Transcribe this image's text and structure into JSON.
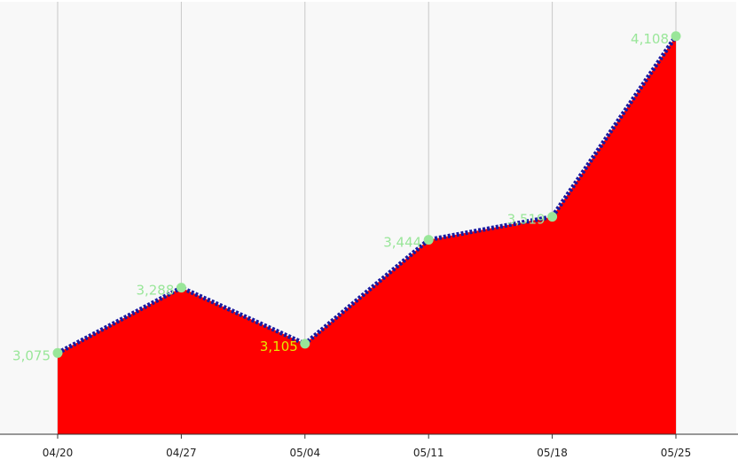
{
  "chart_data": {
    "type": "area",
    "title": "",
    "xlabel": "",
    "ylabel": "",
    "categories": [
      "04/20",
      "04/27",
      "05/04",
      "05/11",
      "05/18",
      "05/25"
    ],
    "series": [
      {
        "values": [
          3075,
          3288,
          3105,
          3444,
          3519,
          4108
        ],
        "labels": [
          "3,075",
          "3,288",
          "3,105",
          "3,444",
          "3,519",
          "4,108"
        ]
      }
    ],
    "ylim": [
      2810,
      4220
    ],
    "grid": "vertical",
    "legend": "none",
    "colors": {
      "area_fill": "#ff0000",
      "line_stroke": "#1a1aa0",
      "marker": "#99e699",
      "label": "#99e699",
      "label_highlight": "#e6e600",
      "background": "#f8f8f8",
      "grid": "#c8c8c8",
      "axis": "#333333"
    },
    "highlight_index": 2
  }
}
